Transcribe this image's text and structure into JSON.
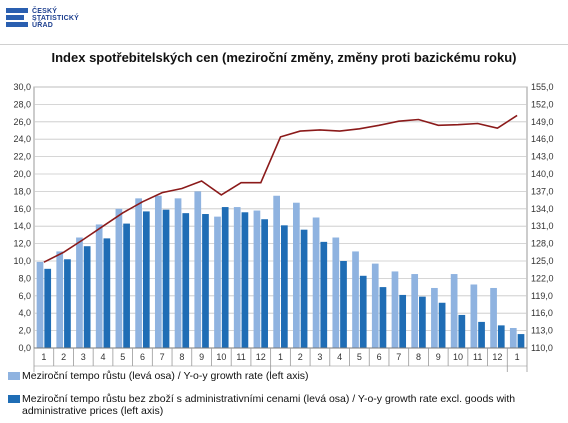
{
  "logo": {
    "lines": [
      "ČESKÝ",
      "STATISTICKÝ",
      "ÚŘAD"
    ]
  },
  "chart_data": {
    "type": "bar",
    "title": "Index spotřebitelských cen (meziroční změny, změny proti bazickému roku)",
    "categories": [
      "1",
      "2",
      "3",
      "4",
      "5",
      "6",
      "7",
      "8",
      "9",
      "10",
      "11",
      "12",
      "1",
      "2",
      "3",
      "4",
      "5",
      "6",
      "7",
      "8",
      "9",
      "10",
      "11",
      "12",
      "1"
    ],
    "ylim_left": [
      0,
      30
    ],
    "yticks_left": [
      "0,0",
      "2,0",
      "4,0",
      "6,0",
      "8,0",
      "10,0",
      "12,0",
      "14,0",
      "16,0",
      "18,0",
      "20,0",
      "22,0",
      "24,0",
      "26,0",
      "28,0",
      "30,0"
    ],
    "ylim_right": [
      110,
      155
    ],
    "yticks_right": [
      "110,0",
      "113,0",
      "116,0",
      "119,0",
      "122,0",
      "125,0",
      "128,0",
      "131,0",
      "134,0",
      "137,0",
      "140,0",
      "143,0",
      "146,0",
      "149,0",
      "152,0",
      "155,0"
    ],
    "series": [
      {
        "name": "Meziroční tempo růstu (levá osa) / Y-o-y growth rate (left axis)",
        "axis": "left",
        "kind": "bar",
        "color": "#8fb3e0",
        "values": [
          9.9,
          11.1,
          12.7,
          14.2,
          16.0,
          17.2,
          17.5,
          17.2,
          18.0,
          15.1,
          16.2,
          15.8,
          17.5,
          16.7,
          15.0,
          12.7,
          11.1,
          9.7,
          8.8,
          8.5,
          6.9,
          8.5,
          7.3,
          6.9,
          2.3
        ],
        "show_in_legend": true
      },
      {
        "name": "Meziroční tempo růstu bez zboží s administrativními cenami (levá osa) / Y-o-y growth rate excl. goods with administrative prices (left axis)",
        "axis": "left",
        "kind": "bar",
        "color": "#1f6db5",
        "values": [
          9.1,
          10.2,
          11.7,
          12.6,
          14.3,
          15.7,
          15.9,
          15.5,
          15.4,
          16.2,
          15.6,
          14.8,
          14.1,
          13.6,
          12.2,
          10.0,
          8.3,
          7.0,
          6.1,
          5.9,
          5.2,
          3.8,
          3.0,
          2.6,
          1.6
        ],
        "show_in_legend": true
      },
      {
        "name": "",
        "axis": "right",
        "kind": "line",
        "color": "#8b1a1a",
        "values": [
          124.8,
          126.5,
          128.7,
          131.0,
          133.3,
          135.2,
          136.8,
          137.5,
          138.8,
          136.4,
          138.5,
          138.5,
          146.4,
          147.4,
          147.6,
          147.4,
          147.8,
          148.4,
          149.1,
          149.4,
          148.4,
          148.5,
          148.7,
          147.9,
          150.1
        ],
        "show_in_legend": false
      }
    ],
    "legend_position": "bottom-left",
    "grid": true
  }
}
